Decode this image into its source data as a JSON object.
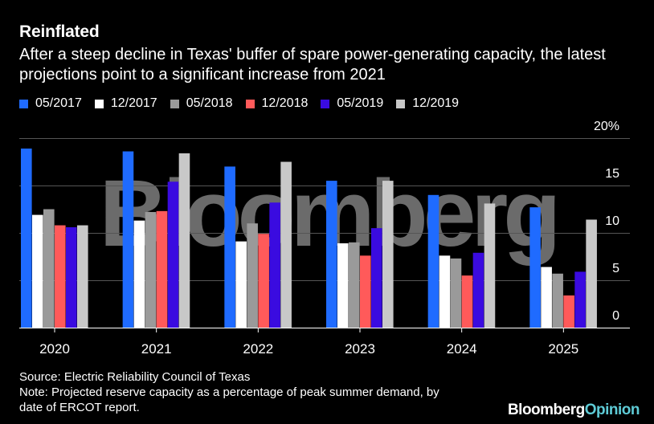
{
  "title": "Reinflated",
  "subtitle": "After a steep decline in Texas' buffer of spare power-generating capacity, the latest projections point to a significant increase from 2021",
  "source": "Source: Electric Reliability Council of Texas",
  "note_line1": "Note: Projected reserve capacity as a percentage of peak summer demand, by",
  "note_line2": "date of ERCOT report.",
  "brand": {
    "part1": "Bloomberg",
    "part2": "Opinion"
  },
  "watermark": "Bloomberg",
  "chart_data": {
    "type": "bar",
    "title": "Reinflated",
    "xlabel": "",
    "ylabel": "",
    "ylim": [
      0,
      20
    ],
    "yticks": [
      0,
      5,
      10,
      15,
      20
    ],
    "ytick_labels": [
      "0",
      "5",
      "10",
      "15",
      "20%"
    ],
    "categories": [
      "2020",
      "2021",
      "2022",
      "2023",
      "2024",
      "2025"
    ],
    "series": [
      {
        "name": "05/2017",
        "color": "#1f6bff",
        "values": [
          18.9,
          18.6,
          17.0,
          15.5,
          14.0,
          12.7
        ]
      },
      {
        "name": "12/2017",
        "color": "#ffffff",
        "values": [
          11.9,
          11.3,
          9.1,
          8.9,
          7.6,
          6.4
        ]
      },
      {
        "name": "05/2018",
        "color": "#9a9a9a",
        "values": [
          12.5,
          12.2,
          11.0,
          9.0,
          7.3,
          5.7
        ]
      },
      {
        "name": "12/2018",
        "color": "#ff5a5a",
        "values": [
          10.8,
          12.3,
          9.9,
          7.6,
          5.5,
          3.4
        ]
      },
      {
        "name": "05/2019",
        "color": "#3a0be0",
        "values": [
          10.6,
          15.4,
          13.2,
          10.5,
          7.9,
          5.9
        ]
      },
      {
        "name": "12/2019",
        "color": "#c8c8c8",
        "values": [
          10.8,
          18.4,
          17.5,
          15.5,
          13.1,
          11.4
        ]
      }
    ]
  }
}
